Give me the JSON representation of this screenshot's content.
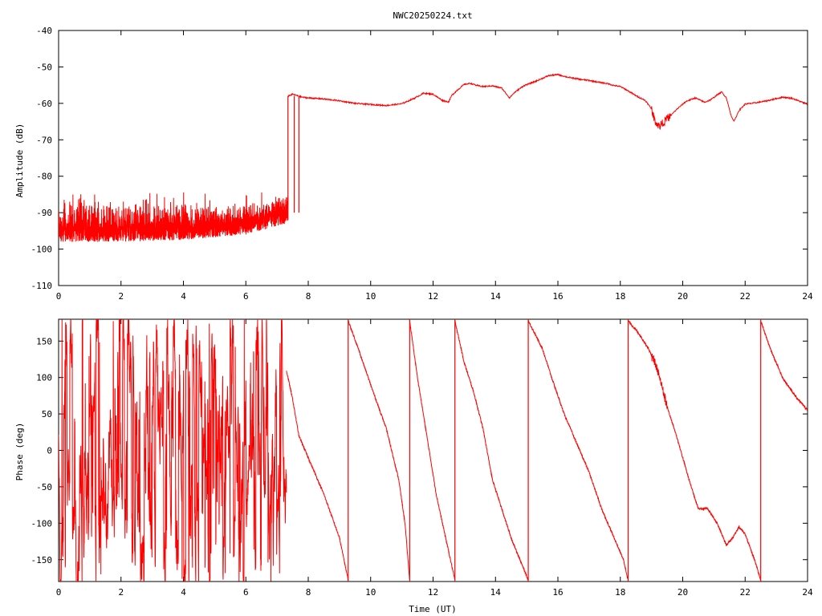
{
  "chart_data": [
    {
      "type": "line",
      "title": "NWC20250224.txt",
      "xlabel": "",
      "ylabel": "Amplitude (dB)",
      "xlim": [
        0,
        24
      ],
      "ylim": [
        -110,
        -40
      ],
      "xticks": [
        "0",
        "2",
        "4",
        "6",
        "8",
        "10",
        "12",
        "14",
        "16",
        "18",
        "20",
        "22",
        "24"
      ],
      "yticks": [
        "-40",
        "-50",
        "-60",
        "-70",
        "-80",
        "-90",
        "-100",
        "-110"
      ],
      "grid": false,
      "color": "#ff0000",
      "noise_segment": {
        "x_range": [
          0,
          7.35
        ],
        "baseline": [
          [
            0,
            -95.5
          ],
          [
            2,
            -95.5
          ],
          [
            4,
            -95
          ],
          [
            6,
            -93.5
          ],
          [
            7.3,
            -90.5
          ]
        ],
        "spike_top": [
          [
            0,
            -86
          ],
          [
            2,
            -87
          ],
          [
            4,
            -87
          ],
          [
            6,
            -88
          ],
          [
            7.3,
            -85
          ]
        ],
        "floor": [
          [
            0,
            -98
          ],
          [
            2,
            -98
          ],
          [
            4,
            -97.5
          ],
          [
            6,
            -96
          ],
          [
            7.3,
            -93
          ]
        ]
      },
      "dropouts": [
        {
          "x": 7.35,
          "from": -58,
          "to": -92
        },
        {
          "x": 7.55,
          "from": -58,
          "to": -90
        },
        {
          "x": 7.7,
          "from": -58,
          "to": -90
        }
      ],
      "values": [
        [
          7.35,
          -58
        ],
        [
          7.5,
          -57.5
        ],
        [
          7.8,
          -58.3
        ],
        [
          8,
          -58.5
        ],
        [
          8.5,
          -58.8
        ],
        [
          9,
          -59.3
        ],
        [
          9.5,
          -60.0
        ],
        [
          10,
          -60.3
        ],
        [
          10.5,
          -60.6
        ],
        [
          11,
          -60.1
        ],
        [
          11.4,
          -58.6
        ],
        [
          11.7,
          -57.2
        ],
        [
          12.0,
          -57.5
        ],
        [
          12.3,
          -59.2
        ],
        [
          12.5,
          -59.6
        ],
        [
          12.6,
          -57.8
        ],
        [
          12.8,
          -56.2
        ],
        [
          13.0,
          -54.8
        ],
        [
          13.2,
          -54.5
        ],
        [
          13.4,
          -55.1
        ],
        [
          13.6,
          -55.4
        ],
        [
          13.9,
          -55.2
        ],
        [
          14.2,
          -55.8
        ],
        [
          14.45,
          -58.5
        ],
        [
          14.6,
          -57.1
        ],
        [
          14.9,
          -55.2
        ],
        [
          15.3,
          -53.9
        ],
        [
          15.7,
          -52.4
        ],
        [
          16.0,
          -52.1
        ],
        [
          16.3,
          -52.8
        ],
        [
          16.7,
          -53.4
        ],
        [
          17.0,
          -53.7
        ],
        [
          17.3,
          -54.2
        ],
        [
          17.6,
          -54.6
        ],
        [
          17.8,
          -55.1
        ],
        [
          18.0,
          -55.4
        ],
        [
          18.2,
          -56.3
        ],
        [
          18.5,
          -57.9
        ],
        [
          18.8,
          -59.2
        ],
        [
          19.0,
          -61.5
        ],
        [
          19.1,
          -64.7
        ],
        [
          19.25,
          -66.3
        ],
        [
          19.4,
          -65.0
        ],
        [
          19.6,
          -63.5
        ],
        [
          19.8,
          -61.7
        ],
        [
          20.1,
          -59.5
        ],
        [
          20.4,
          -58.5
        ],
        [
          20.7,
          -59.7
        ],
        [
          20.9,
          -59.0
        ],
        [
          21.1,
          -57.7
        ],
        [
          21.25,
          -56.9
        ],
        [
          21.4,
          -58.5
        ],
        [
          21.55,
          -63.4
        ],
        [
          21.65,
          -64.9
        ],
        [
          21.8,
          -62.0
        ],
        [
          22.0,
          -60.2
        ],
        [
          22.3,
          -59.9
        ],
        [
          22.7,
          -59.3
        ],
        [
          23.0,
          -58.7
        ],
        [
          23.2,
          -58.3
        ],
        [
          23.5,
          -58.6
        ],
        [
          23.8,
          -59.6
        ],
        [
          24.0,
          -60.2
        ]
      ]
    },
    {
      "type": "line",
      "title": "",
      "xlabel": "Time (UT)",
      "ylabel": "Phase (deg)",
      "xlim": [
        0,
        24
      ],
      "ylim": [
        -180,
        180
      ],
      "xticks": [
        "0",
        "2",
        "4",
        "6",
        "8",
        "10",
        "12",
        "14",
        "16",
        "18",
        "20",
        "22",
        "24"
      ],
      "yticks": [
        "150",
        "100",
        "50",
        "0",
        "-50",
        "-100",
        "-150"
      ],
      "grid": false,
      "color": "#ff0000",
      "noise_segment": {
        "x_range": [
          0,
          7.3
        ],
        "y_range": [
          -180,
          180
        ]
      },
      "jumps": [
        9.28,
        11.25,
        12.7,
        15.05,
        18.25,
        22.5
      ],
      "values": [
        [
          7.3,
          110
        ],
        [
          7.5,
          70
        ],
        [
          7.7,
          20
        ],
        [
          8.0,
          -10
        ],
        [
          8.5,
          -60
        ],
        [
          9.0,
          -120
        ],
        [
          9.28,
          -178
        ],
        [
          9.28,
          178
        ],
        [
          9.6,
          140
        ],
        [
          10.0,
          90
        ],
        [
          10.5,
          30
        ],
        [
          10.9,
          -40
        ],
        [
          11.1,
          -100
        ],
        [
          11.25,
          -178
        ],
        [
          11.25,
          178
        ],
        [
          11.5,
          100
        ],
        [
          11.8,
          20
        ],
        [
          12.1,
          -60
        ],
        [
          12.3,
          -100
        ],
        [
          12.7,
          -178
        ],
        [
          12.7,
          178
        ],
        [
          13.0,
          120
        ],
        [
          13.3,
          80
        ],
        [
          13.6,
          30
        ],
        [
          13.9,
          -40
        ],
        [
          14.2,
          -80
        ],
        [
          14.5,
          -120
        ],
        [
          15.05,
          -178
        ],
        [
          15.05,
          178
        ],
        [
          15.5,
          140
        ],
        [
          15.8,
          100
        ],
        [
          16.2,
          50
        ],
        [
          16.6,
          10
        ],
        [
          17.0,
          -30
        ],
        [
          17.4,
          -80
        ],
        [
          17.8,
          -120
        ],
        [
          18.1,
          -150
        ],
        [
          18.25,
          -178
        ],
        [
          18.25,
          178
        ],
        [
          18.6,
          160
        ],
        [
          18.9,
          140
        ],
        [
          19.2,
          110
        ],
        [
          19.5,
          60
        ],
        [
          19.8,
          20
        ],
        [
          20.2,
          -40
        ],
        [
          20.5,
          -80
        ],
        [
          20.8,
          -80
        ],
        [
          21.1,
          -100
        ],
        [
          21.4,
          -130
        ],
        [
          21.6,
          -120
        ],
        [
          21.8,
          -105
        ],
        [
          22.0,
          -115
        ],
        [
          22.3,
          -150
        ],
        [
          22.5,
          -178
        ],
        [
          22.5,
          178
        ],
        [
          22.8,
          140
        ],
        [
          23.2,
          100
        ],
        [
          23.6,
          75
        ],
        [
          24.0,
          55
        ]
      ]
    }
  ]
}
